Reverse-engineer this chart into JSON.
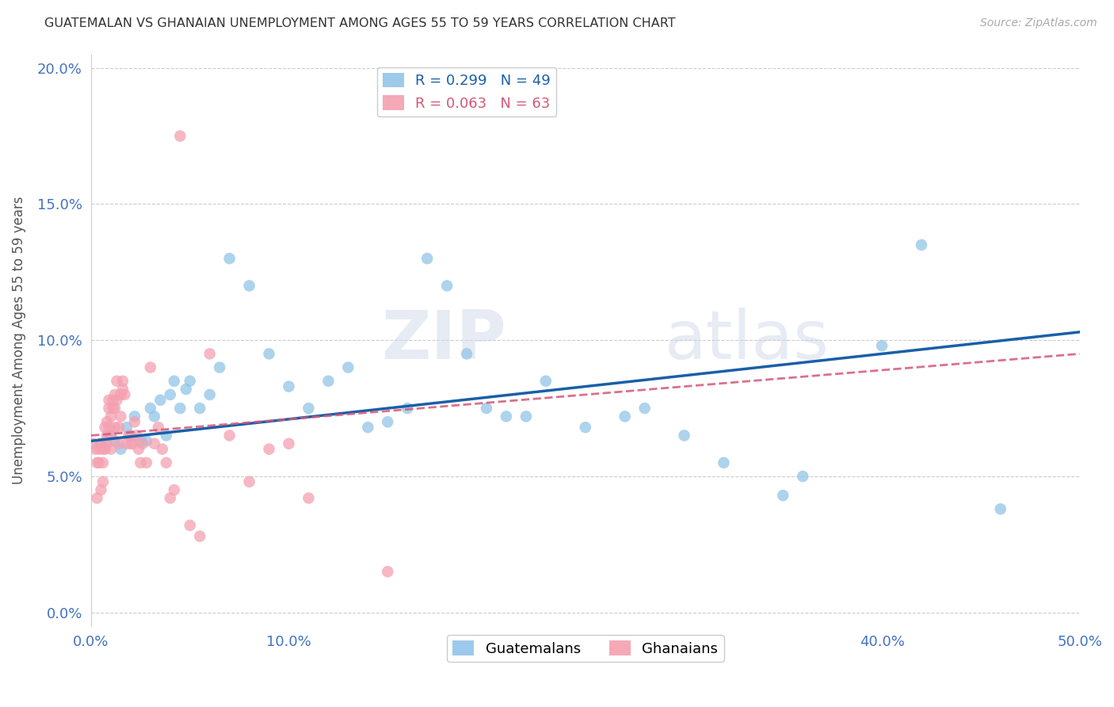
{
  "title": "GUATEMALAN VS GHANAIAN UNEMPLOYMENT AMONG AGES 55 TO 59 YEARS CORRELATION CHART",
  "source": "Source: ZipAtlas.com",
  "ylabel": "Unemployment Among Ages 55 to 59 years",
  "xlim": [
    0.0,
    0.5
  ],
  "ylim": [
    -0.005,
    0.205
  ],
  "xticks": [
    0.0,
    0.1,
    0.2,
    0.3,
    0.4,
    0.5
  ],
  "xtick_labels": [
    "0.0%",
    "10.0%",
    "20.0%",
    "30.0%",
    "40.0%",
    "50.0%"
  ],
  "yticks": [
    0.0,
    0.05,
    0.1,
    0.15,
    0.2
  ],
  "ytick_labels": [
    "0.0%",
    "5.0%",
    "10.0%",
    "15.0%",
    "20.0%"
  ],
  "blue_R": 0.299,
  "blue_N": 49,
  "pink_R": 0.063,
  "pink_N": 63,
  "blue_color": "#92c5e8",
  "pink_color": "#f4a0b0",
  "blue_line_color": "#1a5fa8",
  "pink_line_color": "#d45878",
  "watermark_zip": "ZIP",
  "watermark_atlas": "atlas",
  "legend_label_blue": "Guatemalans",
  "legend_label_pink": "Ghanaians",
  "blue_x": [
    0.005,
    0.008,
    0.01,
    0.012,
    0.015,
    0.018,
    0.02,
    0.022,
    0.025,
    0.028,
    0.03,
    0.032,
    0.035,
    0.038,
    0.04,
    0.042,
    0.045,
    0.048,
    0.05,
    0.055,
    0.06,
    0.065,
    0.07,
    0.08,
    0.09,
    0.1,
    0.11,
    0.12,
    0.13,
    0.14,
    0.15,
    0.16,
    0.17,
    0.18,
    0.19,
    0.2,
    0.21,
    0.22,
    0.23,
    0.25,
    0.27,
    0.28,
    0.3,
    0.32,
    0.35,
    0.36,
    0.4,
    0.42,
    0.46
  ],
  "blue_y": [
    0.062,
    0.063,
    0.065,
    0.063,
    0.06,
    0.068,
    0.065,
    0.072,
    0.063,
    0.063,
    0.075,
    0.072,
    0.078,
    0.065,
    0.08,
    0.085,
    0.075,
    0.082,
    0.085,
    0.075,
    0.08,
    0.09,
    0.13,
    0.12,
    0.095,
    0.083,
    0.075,
    0.085,
    0.09,
    0.068,
    0.07,
    0.075,
    0.13,
    0.12,
    0.095,
    0.075,
    0.072,
    0.072,
    0.085,
    0.068,
    0.072,
    0.075,
    0.065,
    0.055,
    0.043,
    0.05,
    0.098,
    0.135,
    0.038
  ],
  "pink_x": [
    0.001,
    0.002,
    0.003,
    0.003,
    0.004,
    0.004,
    0.005,
    0.005,
    0.006,
    0.006,
    0.006,
    0.007,
    0.007,
    0.008,
    0.008,
    0.008,
    0.009,
    0.009,
    0.009,
    0.01,
    0.01,
    0.01,
    0.011,
    0.011,
    0.012,
    0.012,
    0.012,
    0.013,
    0.013,
    0.014,
    0.014,
    0.015,
    0.015,
    0.016,
    0.016,
    0.017,
    0.018,
    0.019,
    0.02,
    0.021,
    0.022,
    0.023,
    0.024,
    0.025,
    0.026,
    0.028,
    0.03,
    0.032,
    0.034,
    0.036,
    0.038,
    0.04,
    0.042,
    0.045,
    0.05,
    0.055,
    0.06,
    0.07,
    0.08,
    0.09,
    0.1,
    0.11,
    0.15
  ],
  "pink_y": [
    0.062,
    0.06,
    0.055,
    0.042,
    0.06,
    0.055,
    0.062,
    0.045,
    0.06,
    0.055,
    0.048,
    0.068,
    0.06,
    0.065,
    0.062,
    0.07,
    0.075,
    0.078,
    0.068,
    0.065,
    0.072,
    0.06,
    0.075,
    0.078,
    0.068,
    0.075,
    0.08,
    0.078,
    0.085,
    0.062,
    0.068,
    0.072,
    0.08,
    0.085,
    0.082,
    0.08,
    0.062,
    0.065,
    0.062,
    0.062,
    0.07,
    0.065,
    0.06,
    0.055,
    0.062,
    0.055,
    0.09,
    0.062,
    0.068,
    0.06,
    0.055,
    0.042,
    0.045,
    0.175,
    0.032,
    0.028,
    0.095,
    0.065,
    0.048,
    0.06,
    0.062,
    0.042,
    0.015
  ]
}
